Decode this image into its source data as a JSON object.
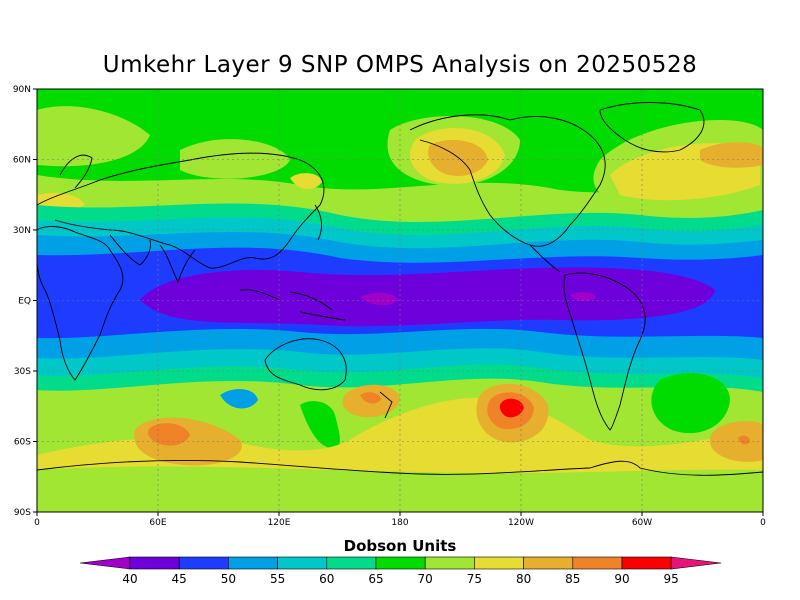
{
  "title": "Umkehr Layer 9 SNP OMPS Analysis on 20250528",
  "lat_labels": [
    "90N",
    "60N",
    "30N",
    "EQ",
    "30S",
    "60S",
    "90S"
  ],
  "lon_labels": [
    "0",
    "60E",
    "120E",
    "180",
    "120W",
    "60W",
    "0"
  ],
  "colorbar": {
    "title": "Dobson Units",
    "values": [
      "40",
      "45",
      "50",
      "55",
      "60",
      "65",
      "70",
      "75",
      "80",
      "85",
      "90",
      "95"
    ],
    "colors": [
      "#a000c8",
      "#6e00dc",
      "#1e3cff",
      "#00a0e6",
      "#00c8c8",
      "#00dc8c",
      "#00dc00",
      "#a0e632",
      "#e6dc32",
      "#e6af2d",
      "#f08228",
      "#fa0000",
      "#e6147a"
    ]
  }
}
